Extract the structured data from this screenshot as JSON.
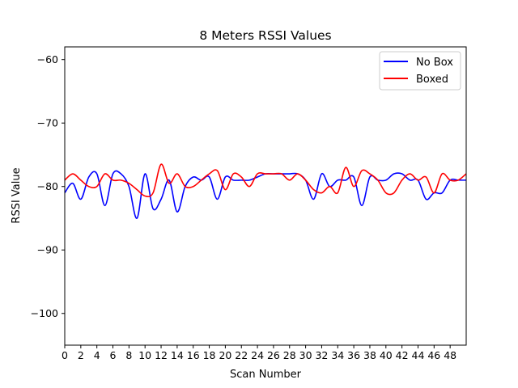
{
  "chart_data": {
    "type": "line",
    "title": "8 Meters RSSI Values",
    "xlabel": "Scan Number",
    "ylabel": "RSSI Value",
    "xlim": [
      0,
      50
    ],
    "ylim": [
      -105,
      -58
    ],
    "xticks": [
      0,
      2,
      4,
      6,
      8,
      10,
      12,
      14,
      16,
      18,
      20,
      22,
      24,
      26,
      28,
      30,
      32,
      34,
      36,
      38,
      40,
      42,
      44,
      46,
      48
    ],
    "xtick_labels": [
      "0",
      "2",
      "4",
      "6",
      "8",
      "10",
      "12",
      "14",
      "16",
      "18",
      "20",
      "22",
      "24",
      "26",
      "28",
      "30",
      "32",
      "34",
      "36",
      "38",
      "40",
      "42",
      "44",
      "46",
      "48"
    ],
    "yticks": [
      -60,
      -70,
      -80,
      -90,
      -100
    ],
    "ytick_labels": [
      "−60",
      "−70",
      "−80",
      "−90",
      "−100"
    ],
    "legend_position": "top-right",
    "grid": false,
    "x": [
      0,
      1,
      2,
      3,
      4,
      5,
      6,
      7,
      8,
      9,
      10,
      11,
      12,
      13,
      14,
      15,
      16,
      17,
      18,
      19,
      20,
      21,
      22,
      23,
      24,
      25,
      26,
      27,
      28,
      29,
      30,
      31,
      32,
      33,
      34,
      35,
      36,
      37,
      38,
      39,
      40,
      41,
      42,
      43,
      44,
      45,
      46,
      47,
      48,
      49,
      50
    ],
    "series": [
      {
        "name": "No Box",
        "color": "#0000ff",
        "values": [
          -81,
          -79.5,
          -82,
          -78.5,
          -78,
          -83,
          -78,
          -78,
          -80,
          -85,
          -78,
          -83.5,
          -82,
          -79,
          -84,
          -80,
          -78.5,
          -79,
          -78.5,
          -82,
          -78.5,
          -79,
          -79,
          -79,
          -78.5,
          -78,
          -78,
          -78,
          -78,
          -78,
          -79,
          -82,
          -78,
          -80,
          -79,
          -79,
          -78.5,
          -83,
          -78.5,
          -79,
          -79,
          -78,
          -78,
          -79,
          -79,
          -82,
          -81,
          -81,
          -79,
          -79,
          -79
        ]
      },
      {
        "name": "Boxed",
        "color": "#ff0000",
        "values": [
          -79,
          -78,
          -79,
          -80,
          -80,
          -78,
          -79,
          -79,
          -79.5,
          -80.5,
          -81.5,
          -81,
          -76.5,
          -79.5,
          -78,
          -80,
          -80,
          -79,
          -78,
          -77.5,
          -80.5,
          -78,
          -78.5,
          -80,
          -78,
          -78,
          -78,
          -78,
          -79,
          -78,
          -79,
          -80.5,
          -81,
          -80,
          -81,
          -77,
          -80,
          -77.5,
          -78,
          -79,
          -81,
          -81,
          -79,
          -78,
          -79,
          -78.5,
          -81,
          -78,
          -79,
          -79,
          -78
        ]
      }
    ]
  }
}
